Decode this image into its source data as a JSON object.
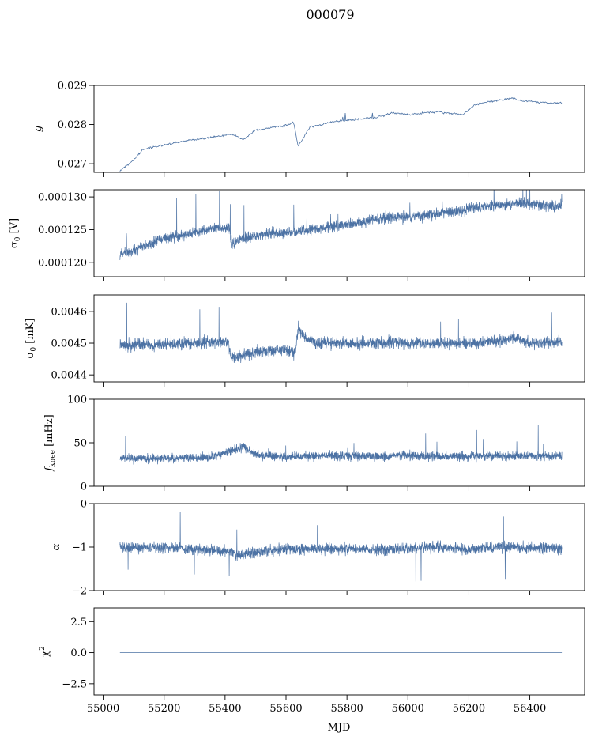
{
  "chart_data": {
    "type": "line",
    "title": "000079",
    "xlabel": "MJD",
    "xlim": [
      54970,
      56580
    ],
    "xticks": [
      55000,
      55200,
      55400,
      55600,
      55800,
      56000,
      56200,
      56400
    ],
    "line_color": "#4c72a4",
    "grid": false,
    "legend": "none",
    "panels": [
      {
        "id": "g",
        "ylabel": "g",
        "ylim": [
          0.02678,
          0.029
        ],
        "yticks": [
          0.027,
          0.028,
          0.029
        ],
        "yticklabels": [
          "0.027",
          "0.028",
          "0.029"
        ],
        "x": [
          55055,
          55070,
          55100,
          55130,
          55160,
          55200,
          55230,
          55280,
          55330,
          55380,
          55420,
          55460,
          55500,
          55550,
          55600,
          55625,
          55640,
          55680,
          55720,
          55760,
          55800,
          55850,
          55900,
          55950,
          56000,
          56050,
          56100,
          56140,
          56180,
          56220,
          56260,
          56300,
          56340,
          56380,
          56420,
          56460,
          56505
        ],
        "values": [
          0.02682,
          0.0269,
          0.0271,
          0.02735,
          0.02742,
          0.02748,
          0.02752,
          0.0276,
          0.02765,
          0.0277,
          0.02775,
          0.02762,
          0.02785,
          0.02792,
          0.02798,
          0.02805,
          0.02745,
          0.02795,
          0.028,
          0.02808,
          0.0281,
          0.02815,
          0.02818,
          0.0283,
          0.02825,
          0.0283,
          0.02832,
          0.02828,
          0.02825,
          0.0285,
          0.02858,
          0.02862,
          0.02868,
          0.0286,
          0.02858,
          0.02855,
          0.02855
        ],
        "noise": 2.5e-05
      },
      {
        "id": "sigma0_v",
        "ylabel": "σ0 [V]",
        "ylim": [
          0.0001178,
          0.0001311
        ],
        "yticks": [
          0.00012,
          0.000125,
          0.00013
        ],
        "yticklabels": [
          "0.000120",
          "0.000125",
          "0.000130"
        ],
        "x": [
          55055,
          55100,
          55150,
          55200,
          55250,
          55300,
          55350,
          55400,
          55415,
          55420,
          55460,
          55500,
          55550,
          55600,
          55650,
          55700,
          55750,
          55800,
          55850,
          55900,
          55905,
          55950,
          56000,
          56050,
          56100,
          56140,
          56180,
          56200,
          56250,
          56300,
          56350,
          56400,
          56450,
          56505
        ],
        "values": [
          0.0001212,
          0.0001218,
          0.0001228,
          0.0001238,
          0.000124,
          0.0001245,
          0.000125,
          0.0001252,
          0.0001252,
          0.0001226,
          0.0001236,
          0.0001241,
          0.0001244,
          0.0001246,
          0.0001248,
          0.0001251,
          0.0001254,
          0.0001258,
          0.0001262,
          0.0001266,
          0.0001266,
          0.0001268,
          0.000127,
          0.0001272,
          0.0001274,
          0.0001276,
          0.0001279,
          0.0001283,
          0.0001286,
          0.0001287,
          0.000129,
          0.0001289,
          0.0001287,
          0.0001286
        ],
        "noise": 8e-07
      },
      {
        "id": "sigma0_mk",
        "ylabel": "σ0 [mK]",
        "ylim": [
          0.004378,
          0.004652
        ],
        "yticks": [
          0.0044,
          0.0045,
          0.0046
        ],
        "yticklabels": [
          "0.0044",
          "0.0045",
          "0.0046"
        ],
        "x": [
          55055,
          55150,
          55250,
          55350,
          55410,
          55420,
          55460,
          55500,
          55550,
          55600,
          55630,
          55640,
          55660,
          55700,
          55800,
          55900,
          55950,
          56000,
          56100,
          56200,
          56300,
          56350,
          56400,
          56505
        ],
        "values": [
          0.004495,
          0.004495,
          0.004498,
          0.004505,
          0.004505,
          0.004455,
          0.00446,
          0.00447,
          0.004478,
          0.00448,
          0.00447,
          0.004548,
          0.00452,
          0.0045,
          0.004498,
          0.0045,
          0.004505,
          0.004498,
          0.0045,
          0.0045,
          0.004505,
          0.00452,
          0.0045,
          0.004505
        ],
        "noise": 1.8e-05
      },
      {
        "id": "fknee",
        "ylabel": "fknee [mHz]",
        "ylim": [
          0,
          100
        ],
        "yticks": [
          0,
          50,
          100
        ],
        "yticklabels": [
          "0",
          "50",
          "100"
        ],
        "x": [
          55055,
          55200,
          55350,
          55430,
          55460,
          55500,
          55600,
          55700,
          55800,
          55900,
          55905,
          56000,
          56100,
          56200,
          56300,
          56400,
          56505
        ],
        "values": [
          32,
          32,
          33,
          42,
          45,
          36,
          34,
          35,
          35,
          34,
          34,
          36,
          34,
          34,
          35,
          35,
          35
        ],
        "noise": 5
      },
      {
        "id": "alpha",
        "ylabel": "α",
        "ylim": [
          -2,
          0
        ],
        "yticks": [
          -2,
          -1,
          0
        ],
        "yticklabels": [
          "−2",
          "−1",
          "0"
        ],
        "x": [
          55055,
          55200,
          55400,
          55450,
          55500,
          55600,
          55700,
          55800,
          55900,
          55905,
          56000,
          56100,
          56200,
          56300,
          56400,
          56505
        ],
        "values": [
          -1.0,
          -1.02,
          -1.08,
          -1.18,
          -1.12,
          -1.05,
          -1.05,
          -1.02,
          -1.08,
          -1.05,
          -1.02,
          -1.0,
          -1.05,
          -1.0,
          -1.02,
          -1.02
        ],
        "noise": 0.12
      },
      {
        "id": "chi2",
        "ylabel": "χ2",
        "ylim": [
          -3.4,
          3.6
        ],
        "yticks": [
          -2.5,
          0.0,
          2.5
        ],
        "yticklabels": [
          "−2.5",
          "0.0",
          "2.5"
        ],
        "x": [
          55055,
          56505
        ],
        "values": [
          0.0,
          0.0
        ],
        "noise": 0
      }
    ]
  }
}
